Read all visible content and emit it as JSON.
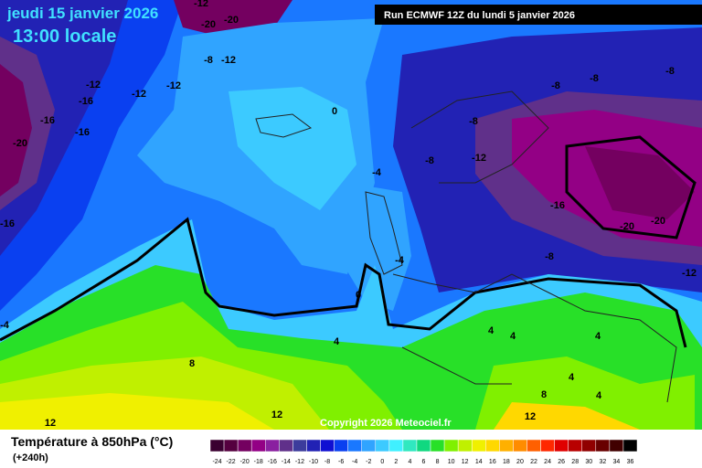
{
  "header": {
    "title": "jeudi 15 janvier 2026",
    "time": "13:00 locale",
    "run": "Run ECMWF 12Z du lundi 5 janvier 2026"
  },
  "copyright": "Copyright 2026 Meteociel.fr",
  "footer": {
    "title": "Température à 850hPa (°C)",
    "lead": "(+240h)"
  },
  "legend": {
    "ticks": [
      -24,
      -22,
      -20,
      -18,
      -16,
      -14,
      -12,
      -10,
      -8,
      -6,
      -4,
      -2,
      0,
      2,
      4,
      6,
      8,
      10,
      12,
      14,
      16,
      18,
      20,
      22,
      24,
      26,
      28,
      30,
      32,
      34,
      36
    ],
    "colors": [
      "#3a0030",
      "#55003f",
      "#740060",
      "#930085",
      "#8a20a0",
      "#60308a",
      "#3c3c9c",
      "#2222b4",
      "#1010d2",
      "#0a40f0",
      "#1a78ff",
      "#30a4ff",
      "#3ccaff",
      "#40f0ff",
      "#30e8c0",
      "#10d880",
      "#28e028",
      "#80f000",
      "#c0f000",
      "#f0f000",
      "#ffd800",
      "#ffb000",
      "#ff8c00",
      "#ff6000",
      "#ff2800",
      "#e00000",
      "#b80000",
      "#900000",
      "#680000",
      "#400000",
      "#000000"
    ]
  },
  "contour_labels": [
    -12,
    -20,
    -20,
    -8,
    -12,
    -12,
    -12,
    -12,
    -16,
    -16,
    -16,
    -20,
    0,
    -8,
    -8,
    -8,
    -8,
    -12,
    -8,
    -4,
    -16,
    -20,
    -20,
    -8,
    -4,
    -12,
    -16,
    0,
    -4,
    4,
    4,
    4,
    4,
    8,
    4,
    4,
    8,
    12,
    12,
    12
  ]
}
